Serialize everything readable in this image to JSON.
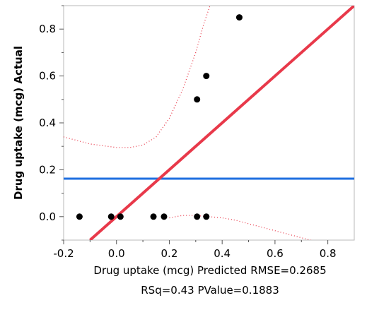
{
  "chart_data": {
    "type": "scatter",
    "xlabel_lines": [
      "Drug uptake (mcg) Predicted RMSE=0.2685",
      "RSq=0.43 PValue=0.1883"
    ],
    "ylabel": "Drug uptake (mcg) Actual",
    "xlim": [
      -0.2,
      0.9
    ],
    "ylim": [
      -0.1,
      0.9
    ],
    "x_ticks": [
      -0.2,
      0.0,
      0.2,
      0.4,
      0.6,
      0.8
    ],
    "x_tick_labels": [
      "-0.2",
      "0.0",
      "0.2",
      "0.4",
      "0.6",
      "0.8"
    ],
    "y_ticks": [
      0.0,
      0.2,
      0.4,
      0.6,
      0.8
    ],
    "y_tick_labels": [
      "0.0",
      "0.2",
      "0.4",
      "0.6",
      "0.8"
    ],
    "points": [
      {
        "x": -0.14,
        "y": 0.0
      },
      {
        "x": -0.02,
        "y": 0.0
      },
      {
        "x": 0.015,
        "y": 0.0
      },
      {
        "x": 0.14,
        "y": 0.0
      },
      {
        "x": 0.18,
        "y": 0.0
      },
      {
        "x": 0.305,
        "y": 0.0
      },
      {
        "x": 0.34,
        "y": 0.0
      },
      {
        "x": 0.305,
        "y": 0.5
      },
      {
        "x": 0.34,
        "y": 0.6
      },
      {
        "x": 0.465,
        "y": 0.85
      }
    ],
    "fit_line": {
      "x": [
        -0.1,
        0.9
      ],
      "y": [
        -0.1,
        0.9
      ],
      "color": "#e8394a"
    },
    "mean_line": {
      "y": 0.162,
      "color": "#1f6fe0"
    },
    "confidence_upper": {
      "x": [
        -0.2,
        -0.1,
        0.0,
        0.05,
        0.1,
        0.15,
        0.2,
        0.25,
        0.3,
        0.33,
        0.36
      ],
      "y": [
        0.34,
        0.31,
        0.295,
        0.295,
        0.305,
        0.34,
        0.42,
        0.54,
        0.7,
        0.82,
        0.92
      ]
    },
    "confidence_lower": {
      "x": [
        0.2,
        0.25,
        0.3,
        0.35,
        0.4,
        0.45,
        0.5,
        0.55,
        0.6,
        0.65,
        0.7,
        0.75
      ],
      "y": [
        -0.005,
        0.005,
        0.005,
        0.0,
        -0.005,
        -0.015,
        -0.03,
        -0.045,
        -0.06,
        -0.075,
        -0.09,
        -0.105
      ]
    },
    "confidence_color": "#e8394a",
    "grid": false
  }
}
